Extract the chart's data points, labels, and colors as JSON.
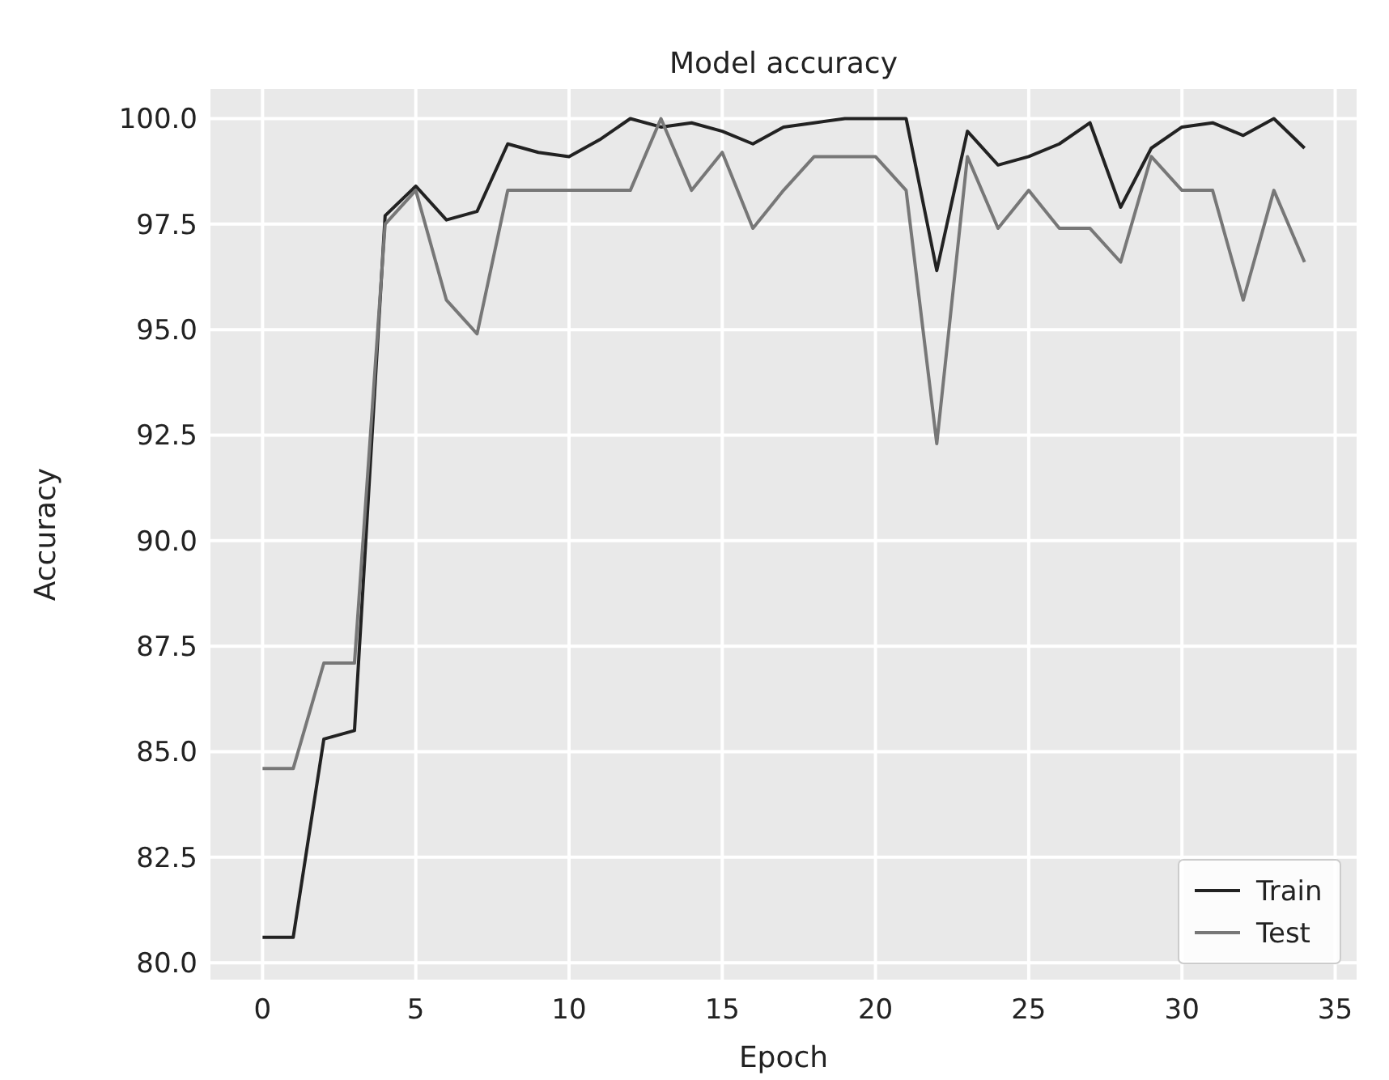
{
  "chart_data": {
    "type": "line",
    "title": "Model accuracy",
    "xlabel": "Epoch",
    "ylabel": "Accuracy",
    "x": [
      0,
      1,
      2,
      3,
      4,
      5,
      6,
      7,
      8,
      9,
      10,
      11,
      12,
      13,
      14,
      15,
      16,
      17,
      18,
      19,
      20,
      21,
      22,
      23,
      24,
      25,
      26,
      27,
      28,
      29,
      30,
      31,
      32,
      33,
      34
    ],
    "series": [
      {
        "name": "Train",
        "color": "#222222",
        "values": [
          80.6,
          80.6,
          85.3,
          85.5,
          97.7,
          98.4,
          97.6,
          97.8,
          99.4,
          99.2,
          99.1,
          99.5,
          100.0,
          99.8,
          99.9,
          99.7,
          99.4,
          99.8,
          99.9,
          100.0,
          100.0,
          100.0,
          96.4,
          99.7,
          98.9,
          99.1,
          99.4,
          99.9,
          97.9,
          99.3,
          99.8,
          99.9,
          99.6,
          100.0,
          99.3
        ]
      },
      {
        "name": "Test",
        "color": "#777777",
        "values": [
          84.6,
          84.6,
          87.1,
          87.1,
          97.5,
          98.3,
          95.7,
          94.9,
          98.3,
          98.3,
          98.3,
          98.3,
          98.3,
          100.0,
          98.3,
          99.2,
          97.4,
          98.3,
          99.1,
          99.1,
          99.1,
          98.3,
          92.3,
          99.1,
          97.4,
          98.3,
          97.4,
          97.4,
          96.6,
          99.1,
          98.3,
          98.3,
          95.7,
          98.3,
          96.6
        ]
      }
    ],
    "xlim": [
      -1.7,
      35.7
    ],
    "ylim": [
      79.6,
      100.7
    ],
    "xticks": [
      0,
      5,
      10,
      15,
      20,
      25,
      30,
      35
    ],
    "yticks": [
      {
        "value": 80,
        "label": "80.0"
      },
      {
        "value": 82.5,
        "label": "82.5"
      },
      {
        "value": 85,
        "label": "85.0"
      },
      {
        "value": 87.5,
        "label": "87.5"
      },
      {
        "value": 90,
        "label": "90.0"
      },
      {
        "value": 92.5,
        "label": "92.5"
      },
      {
        "value": 95,
        "label": "95.0"
      },
      {
        "value": 97.5,
        "label": "97.5"
      },
      {
        "value": 100,
        "label": "100.0"
      }
    ],
    "grid": true,
    "legend": "bottom right",
    "marker": "none",
    "line_style": "solid"
  }
}
